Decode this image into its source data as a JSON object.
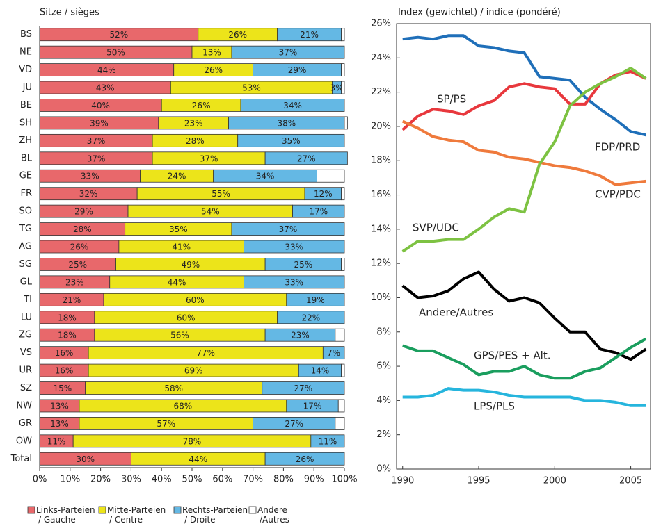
{
  "chart_data": [
    {
      "type": "bar",
      "orientation": "horizontal",
      "stacked": true,
      "title": "Sitze / sièges",
      "categories": [
        "BS",
        "NE",
        "VD",
        "JU",
        "BE",
        "SH",
        "ZH",
        "BL",
        "GE",
        "FR",
        "SO",
        "TG",
        "AG",
        "SG",
        "GL",
        "TI",
        "LU",
        "ZG",
        "VS",
        "UR",
        "SZ",
        "NW",
        "GR",
        "OW",
        "Total"
      ],
      "series": [
        {
          "name": "Links-Parteien\n/ Gauche",
          "color": "#e8686b",
          "values": [
            52,
            50,
            44,
            43,
            40,
            39,
            37,
            37,
            33,
            32,
            29,
            28,
            26,
            25,
            23,
            21,
            18,
            18,
            16,
            16,
            15,
            13,
            13,
            11,
            30
          ],
          "value_labels": [
            "52%",
            "50%",
            "44%",
            "43%",
            "40%",
            "39%",
            "37%",
            "37%",
            "33%",
            "32%",
            "29%",
            "28%",
            "26%",
            "25%",
            "23%",
            "21%",
            "18%",
            "18%",
            "16%",
            "16%",
            "15%",
            "13%",
            "13%",
            "11%",
            "30%"
          ]
        },
        {
          "name": "Mitte-Parteien\n/ Centre",
          "color": "#ece41a",
          "values": [
            26,
            13,
            26,
            53,
            26,
            23,
            28,
            37,
            24,
            55,
            54,
            35,
            41,
            49,
            44,
            60,
            60,
            56,
            77,
            69,
            58,
            68,
            57,
            78,
            44
          ],
          "value_labels": [
            "26%",
            "13%",
            "26%",
            "53%",
            "26%",
            "23%",
            "28%",
            "37%",
            "24%",
            "55%",
            "54%",
            "35%",
            "41%",
            "49%",
            "44%",
            "60%",
            "60%",
            "56%",
            "77%",
            "69%",
            "58%",
            "68%",
            "57%",
            "78%",
            "44%"
          ]
        },
        {
          "name": "Rechts-Parteien\n/ Droite",
          "color": "#64b8e4",
          "values": [
            21,
            37,
            29,
            3,
            34,
            38,
            35,
            27,
            34,
            12,
            17,
            37,
            33,
            25,
            33,
            19,
            22,
            23,
            7,
            14,
            27,
            17,
            27,
            11,
            26
          ],
          "value_labels": [
            "21%",
            "37%",
            "29%",
            "3%",
            "34%",
            "38%",
            "35%",
            "27%",
            "34%",
            "12%",
            "17%",
            "37%",
            "33%",
            "25%",
            "33%",
            "19%",
            "22%",
            "23%",
            "7%",
            "14%",
            "27%",
            "17%",
            "27%",
            "11%",
            "26%"
          ]
        },
        {
          "name": "Andere\n/Autres",
          "color": "#ffffff",
          "values": [
            1,
            0,
            1,
            1,
            0,
            1,
            0,
            0,
            9,
            1,
            0,
            0,
            0,
            1,
            0,
            0,
            0,
            3,
            0,
            1,
            0,
            2,
            3,
            0,
            0
          ]
        }
      ],
      "xlim": [
        0,
        100
      ],
      "xticks": [
        {
          "value": 0,
          "label": "0%"
        },
        {
          "value": 10,
          "label": "10%"
        },
        {
          "value": 20,
          "label": "20%"
        },
        {
          "value": 30,
          "label": "30%"
        },
        {
          "value": 40,
          "label": "40%"
        },
        {
          "value": 50,
          "label": "50%"
        },
        {
          "value": 60,
          "label": "60%"
        },
        {
          "value": 70,
          "label": "70%"
        },
        {
          "value": 80,
          "label": "80%"
        },
        {
          "value": 90,
          "label": "90%"
        },
        {
          "value": 100,
          "label": "100%"
        }
      ]
    },
    {
      "type": "line",
      "title": "Index (gewichtet) / indice (pondéré)",
      "x": [
        1990,
        1991,
        1992,
        1993,
        1994,
        1995,
        1996,
        1997,
        1998,
        1999,
        2000,
        2001,
        2002,
        2003,
        2004,
        2005,
        2006
      ],
      "series": [
        {
          "name": "FDP/PRD",
          "color": "#1f6fb9",
          "values": [
            25.1,
            25.2,
            25.1,
            25.3,
            25.3,
            24.7,
            24.6,
            24.4,
            24.3,
            22.9,
            22.8,
            22.7,
            21.7,
            21.0,
            20.4,
            19.7,
            19.5
          ]
        },
        {
          "name": "SP/PS",
          "color": "#e8383d",
          "values": [
            19.8,
            20.6,
            21.0,
            20.9,
            20.7,
            21.2,
            21.5,
            22.3,
            22.5,
            22.3,
            22.2,
            21.3,
            21.3,
            22.5,
            23.0,
            23.2,
            22.8
          ]
        },
        {
          "name": "CVP/PDC",
          "color": "#ef7a3c",
          "values": [
            20.3,
            19.9,
            19.4,
            19.2,
            19.1,
            18.6,
            18.5,
            18.2,
            18.1,
            17.9,
            17.7,
            17.6,
            17.4,
            17.1,
            16.6,
            16.7,
            16.8
          ]
        },
        {
          "name": "SVP/UDC",
          "color": "#7dc242",
          "values": [
            12.7,
            13.3,
            13.3,
            13.4,
            13.4,
            14.0,
            14.7,
            15.2,
            15.0,
            17.8,
            19.1,
            21.2,
            22.0,
            22.5,
            22.9,
            23.4,
            22.8
          ]
        },
        {
          "name": "Andere/Autres",
          "color": "#000000",
          "values": [
            10.7,
            10.0,
            10.1,
            10.4,
            11.1,
            11.5,
            10.5,
            9.8,
            10.0,
            9.7,
            8.8,
            8.0,
            8.0,
            7.0,
            6.8,
            6.4,
            7.0
          ]
        },
        {
          "name": "GPS/PES + Alt.",
          "color": "#1a9e5e",
          "values": [
            7.2,
            6.9,
            6.9,
            6.5,
            6.1,
            5.5,
            5.7,
            5.7,
            6.0,
            5.5,
            5.3,
            5.3,
            5.7,
            5.9,
            6.5,
            7.1,
            7.6
          ]
        },
        {
          "name": "LPS/PLS",
          "color": "#26b5dd",
          "values": [
            4.2,
            4.2,
            4.3,
            4.7,
            4.6,
            4.6,
            4.5,
            4.3,
            4.2,
            4.2,
            4.2,
            4.2,
            4.0,
            4.0,
            3.9,
            3.7,
            3.7
          ]
        }
      ],
      "xlim": [
        1989.6,
        2006.3
      ],
      "xticks": [
        1990,
        1995,
        2000,
        2005
      ],
      "ylim": [
        0,
        26
      ],
      "yticks": [
        {
          "value": 0,
          "label": "0%"
        },
        {
          "value": 2,
          "label": "2%"
        },
        {
          "value": 4,
          "label": "4%"
        },
        {
          "value": 6,
          "label": "6%"
        },
        {
          "value": 8,
          "label": "8%"
        },
        {
          "value": 10,
          "label": "10%"
        },
        {
          "value": 12,
          "label": "12%"
        },
        {
          "value": 14,
          "label": "14%"
        },
        {
          "value": 16,
          "label": "16%"
        },
        {
          "value": 18,
          "label": "18%"
        },
        {
          "value": 20,
          "label": "20%"
        },
        {
          "value": 22,
          "label": "22%"
        },
        {
          "value": 24,
          "label": "24%"
        },
        {
          "value": 26,
          "label": "26%"
        }
      ],
      "grid": false
    }
  ]
}
